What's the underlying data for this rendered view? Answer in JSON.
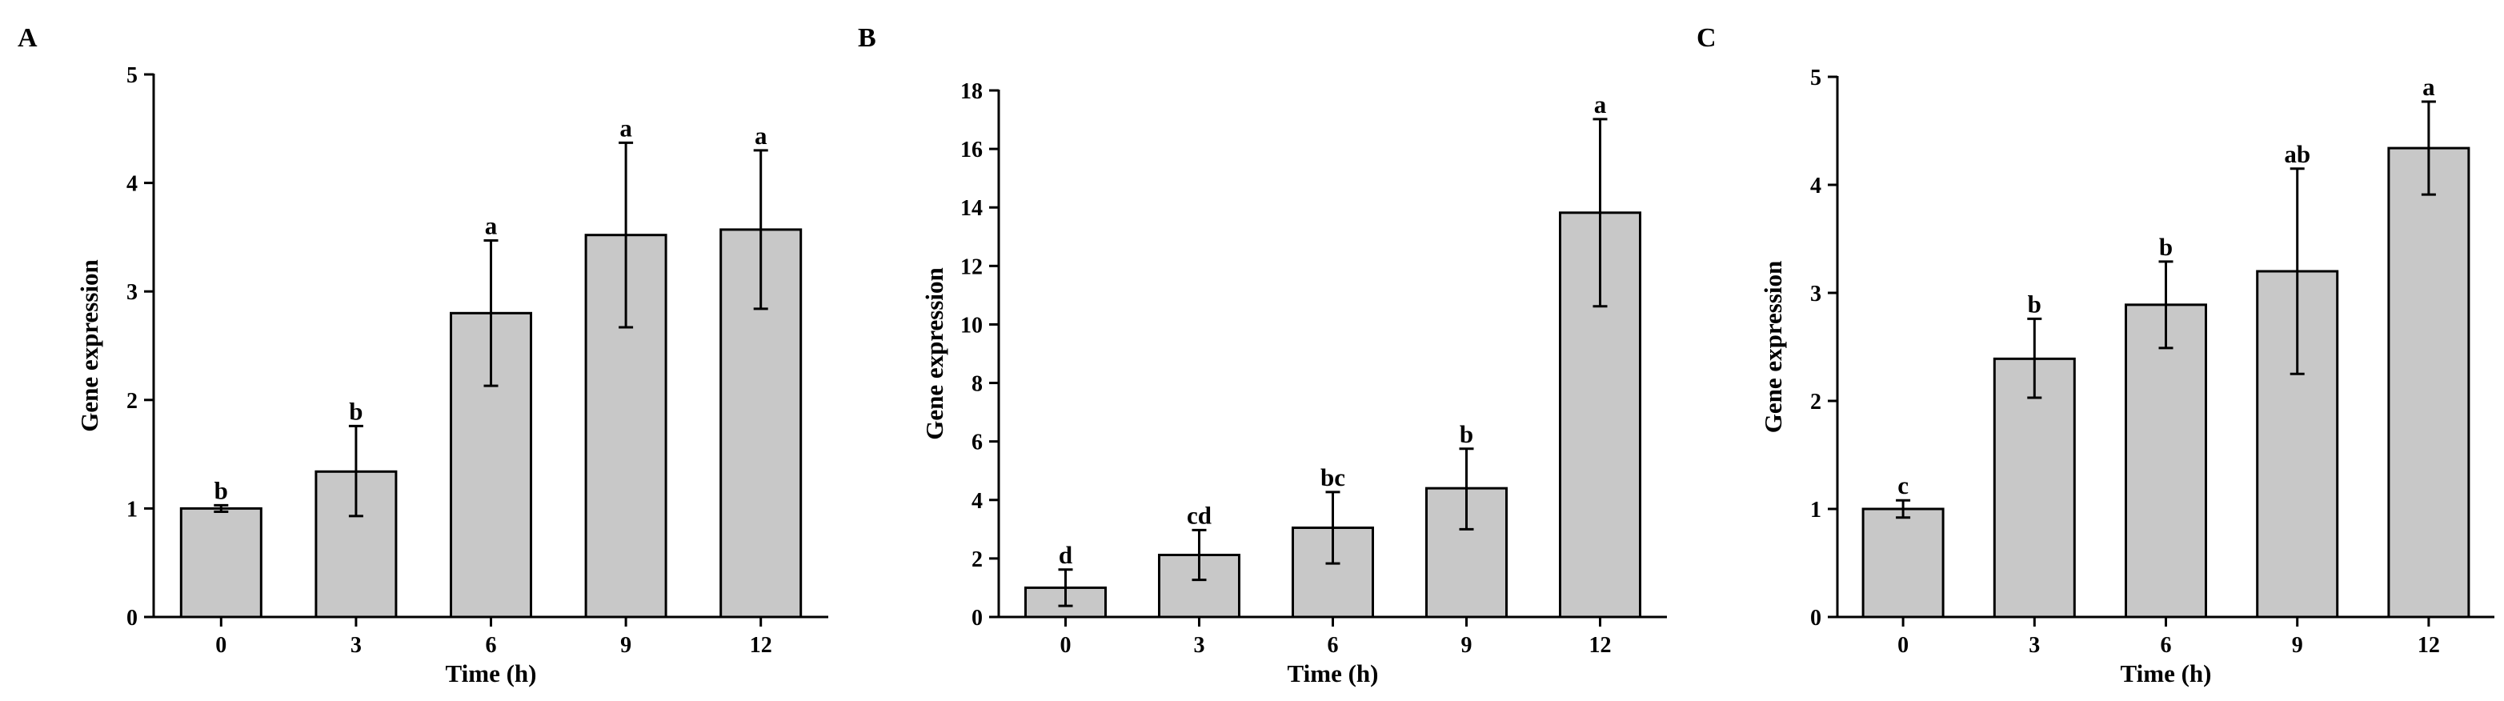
{
  "figure": {
    "width_note": "three-panel bar chart figure",
    "bar_color": "#c8c8c8",
    "line_color": "#000000",
    "background": "#ffffff"
  },
  "chart_data": [
    {
      "panel_label": "A",
      "type": "bar",
      "title": "",
      "xlabel": "Time (h)",
      "ylabel": "Gene expression",
      "categories": [
        "0",
        "3",
        "6",
        "9",
        "12"
      ],
      "values": [
        1.0,
        1.34,
        2.8,
        3.52,
        3.57
      ],
      "error_up": [
        0.03,
        0.42,
        0.67,
        0.85,
        0.73
      ],
      "error_down": [
        0.03,
        0.41,
        0.67,
        0.85,
        0.73
      ],
      "letters": [
        "b",
        "b",
        "a",
        "a",
        "a"
      ],
      "ylim": [
        0,
        5
      ],
      "yticks": [
        0,
        1,
        2,
        3,
        4,
        5
      ],
      "ytick_labels": [
        "0",
        "1",
        "2",
        "3",
        "4",
        "5"
      ],
      "grid": false
    },
    {
      "panel_label": "B",
      "type": "bar",
      "title": "",
      "xlabel": "Time (h)",
      "ylabel": "Gene expression",
      "categories": [
        "0",
        "3",
        "6",
        "9",
        "12"
      ],
      "values": [
        1.0,
        2.12,
        3.05,
        4.4,
        13.82
      ],
      "error_up": [
        0.62,
        0.85,
        1.22,
        1.35,
        3.2
      ],
      "error_down": [
        0.62,
        0.85,
        1.22,
        1.4,
        3.2
      ],
      "letters": [
        "d",
        "cd",
        "bc",
        "b",
        "a"
      ],
      "ylim": [
        0,
        18
      ],
      "yticks": [
        0,
        2,
        4,
        6,
        8,
        10,
        12,
        14,
        16,
        18
      ],
      "ytick_labels": [
        "0",
        "2",
        "4",
        "6",
        "8",
        "10",
        "12",
        "14",
        "16",
        "18"
      ],
      "grid": false
    },
    {
      "panel_label": "C",
      "type": "bar",
      "title": "",
      "xlabel": "Time (h)",
      "ylabel": "Gene expression",
      "categories": [
        "0",
        "3",
        "6",
        "9",
        "12"
      ],
      "values": [
        1.0,
        2.39,
        2.89,
        3.2,
        4.34
      ],
      "error_up": [
        0.08,
        0.37,
        0.4,
        0.95,
        0.43
      ],
      "error_down": [
        0.08,
        0.36,
        0.4,
        0.95,
        0.43
      ],
      "letters": [
        "c",
        "b",
        "b",
        "ab",
        "a"
      ],
      "ylim": [
        0,
        5
      ],
      "yticks": [
        0,
        1,
        2,
        3,
        4,
        5
      ],
      "ytick_labels": [
        "0",
        "1",
        "2",
        "3",
        "4",
        "5"
      ],
      "grid": false
    }
  ]
}
